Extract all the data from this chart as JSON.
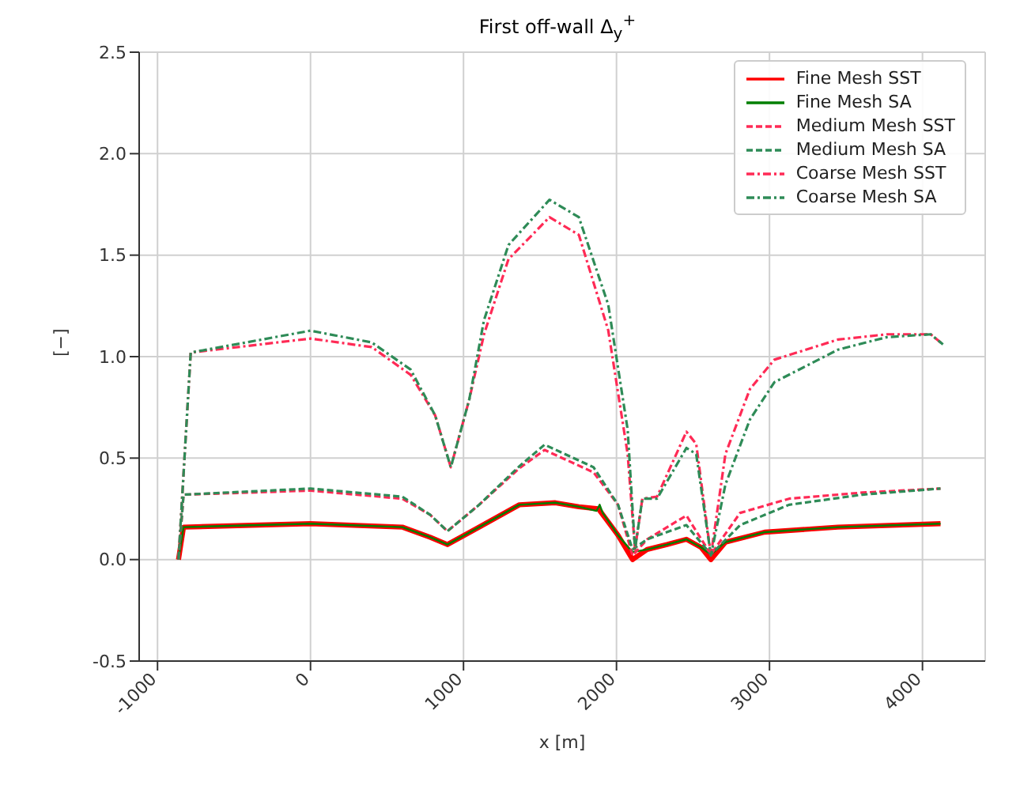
{
  "chart_data": {
    "type": "line",
    "title": "First off-wall Δ$_{y}$$^{+}$",
    "xlabel": "x [m]",
    "ylabel": "[−]",
    "xlim": [
      -1120,
      4410
    ],
    "xticks": [
      -1000,
      0,
      1000,
      2000,
      3000,
      4000
    ],
    "ylim": [
      -0.5,
      2.5
    ],
    "yticks": [
      -0.5,
      {
        "value": 0,
        "label": "0.0"
      },
      0.5,
      {
        "value": 1,
        "label": "1.0"
      },
      1.5,
      {
        "value": 2,
        "label": "2.0"
      },
      2.5
    ],
    "grid": true,
    "legend": "top right",
    "marker": "none",
    "series": [
      {
        "name": "Fine Mesh SST",
        "color": "#ff0000",
        "line_style": "solid",
        "x": [
          -863,
          -830,
          0,
          600,
          783,
          895,
          1102,
          1365,
          1600,
          1754,
          1882,
          2010,
          2105,
          2200,
          2330,
          2457,
          2553,
          2617,
          2712,
          2968,
          3447,
          4118
        ],
        "values": [
          0,
          0.16,
          0.177,
          0.16,
          0.11,
          0.074,
          0.16,
          0.27,
          0.28,
          0.26,
          0.25,
          0.12,
          0.0,
          0.05,
          0.074,
          0.1,
          0.06,
          0.0,
          0.086,
          0.135,
          0.16,
          0.177
        ]
      },
      {
        "name": "Fine Mesh SA",
        "color": "#007f00",
        "line_style": "solid",
        "x": [
          -863,
          -830,
          0,
          600,
          783,
          895,
          1102,
          1365,
          1600,
          1754,
          1870,
          1890,
          1910,
          2010,
          2105,
          2200,
          2330,
          2457,
          2553,
          2617,
          2712,
          2968,
          3447,
          4118
        ],
        "values": [
          0,
          0.16,
          0.177,
          0.16,
          0.11,
          0.074,
          0.16,
          0.27,
          0.28,
          0.26,
          0.24,
          0.27,
          0.23,
          0.12,
          0.037,
          0.05,
          0.074,
          0.1,
          0.06,
          0.025,
          0.086,
          0.135,
          0.16,
          0.177
        ]
      },
      {
        "name": "Medium Mesh SST",
        "color": "#ff2a55",
        "line_style": "dashed",
        "x": [
          -863,
          -830,
          0,
          600,
          783,
          895,
          1102,
          1365,
          1530,
          1850,
          2010,
          2105,
          2200,
          2457,
          2617,
          2808,
          3128,
          3607,
          4118
        ],
        "values": [
          0,
          0.32,
          0.34,
          0.3,
          0.22,
          0.14,
          0.27,
          0.45,
          0.54,
          0.43,
          0.27,
          0.02,
          0.1,
          0.217,
          0.025,
          0.23,
          0.3,
          0.33,
          0.35
        ]
      },
      {
        "name": "Medium Mesh SA",
        "color": "#2e8b57",
        "line_style": "dashed",
        "x": [
          -863,
          -830,
          0,
          600,
          783,
          895,
          1102,
          1365,
          1530,
          1850,
          2010,
          2105,
          2200,
          2457,
          2617,
          2808,
          3128,
          3607,
          4118
        ],
        "values": [
          0,
          0.32,
          0.35,
          0.31,
          0.22,
          0.14,
          0.27,
          0.46,
          0.566,
          0.455,
          0.27,
          0.05,
          0.1,
          0.17,
          0.025,
          0.17,
          0.27,
          0.32,
          0.35
        ]
      },
      {
        "name": "Coarse Mesh SST",
        "color": "#ff2a55",
        "line_style": "dashdot",
        "x": [
          -863,
          -783,
          0,
          400,
          655,
          815,
          917,
          1038,
          1134,
          1294,
          1562,
          1754,
          1946,
          2073,
          2121,
          2169,
          2265,
          2457,
          2521,
          2617,
          2712,
          2872,
          3032,
          3447,
          3767,
          4054,
          4134
        ],
        "values": [
          0,
          1.02,
          1.089,
          1.047,
          0.91,
          0.71,
          0.455,
          0.79,
          1.11,
          1.48,
          1.687,
          1.6,
          1.13,
          0.52,
          0.05,
          0.3,
          0.31,
          0.63,
          0.57,
          0.02,
          0.52,
          0.84,
          0.985,
          1.084,
          1.11,
          1.11,
          1.06
        ]
      },
      {
        "name": "Coarse Mesh SA",
        "color": "#2e8b57",
        "line_style": "dashdot",
        "x": [
          -863,
          -783,
          0,
          400,
          655,
          815,
          917,
          1038,
          1134,
          1294,
          1562,
          1754,
          1946,
          2073,
          2121,
          2169,
          2265,
          2457,
          2521,
          2617,
          2712,
          2872,
          3032,
          3447,
          3767,
          4054,
          4134
        ],
        "values": [
          0,
          1.02,
          1.128,
          1.07,
          0.936,
          0.71,
          0.455,
          0.79,
          1.18,
          1.55,
          1.773,
          1.687,
          1.256,
          0.64,
          0.05,
          0.3,
          0.3,
          0.55,
          0.52,
          0.02,
          0.37,
          0.69,
          0.874,
          1.034,
          1.096,
          1.11,
          1.06
        ]
      }
    ]
  }
}
